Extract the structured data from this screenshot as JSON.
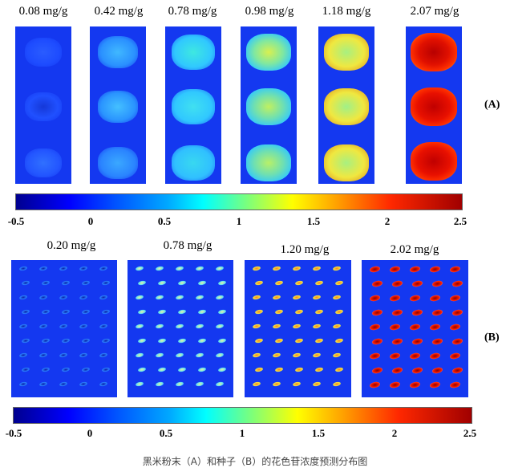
{
  "section_a": {
    "tag": "(A)",
    "panels": [
      {
        "label": "0.08 mg/g",
        "level": 0.08
      },
      {
        "label": "0.42 mg/g",
        "level": 0.42
      },
      {
        "label": "0.78 mg/g",
        "level": 0.78
      },
      {
        "label": "0.98 mg/g",
        "level": 0.98
      },
      {
        "label": "1.18 mg/g",
        "level": 1.18
      },
      {
        "label": "2.07 mg/g",
        "level": 2.07
      }
    ],
    "colorbar_ticks": [
      "-0.5",
      "0",
      "0.5",
      "1",
      "1.5",
      "2",
      "2.5"
    ]
  },
  "section_b": {
    "tag": "(B)",
    "panels": [
      {
        "label": "0.20 mg/g",
        "level": 0.2
      },
      {
        "label": "0.78 mg/g",
        "level": 0.78
      },
      {
        "label": "1.20 mg/g",
        "level": 1.2
      },
      {
        "label": "2.02 mg/g",
        "level": 2.02
      }
    ],
    "colorbar_ticks": [
      "-0.5",
      "0",
      "0.5",
      "1",
      "1.5",
      "2",
      "2.5"
    ]
  },
  "caption": "黑米粉末（A）和种子（B）的花色苷浓度预测分布图"
}
